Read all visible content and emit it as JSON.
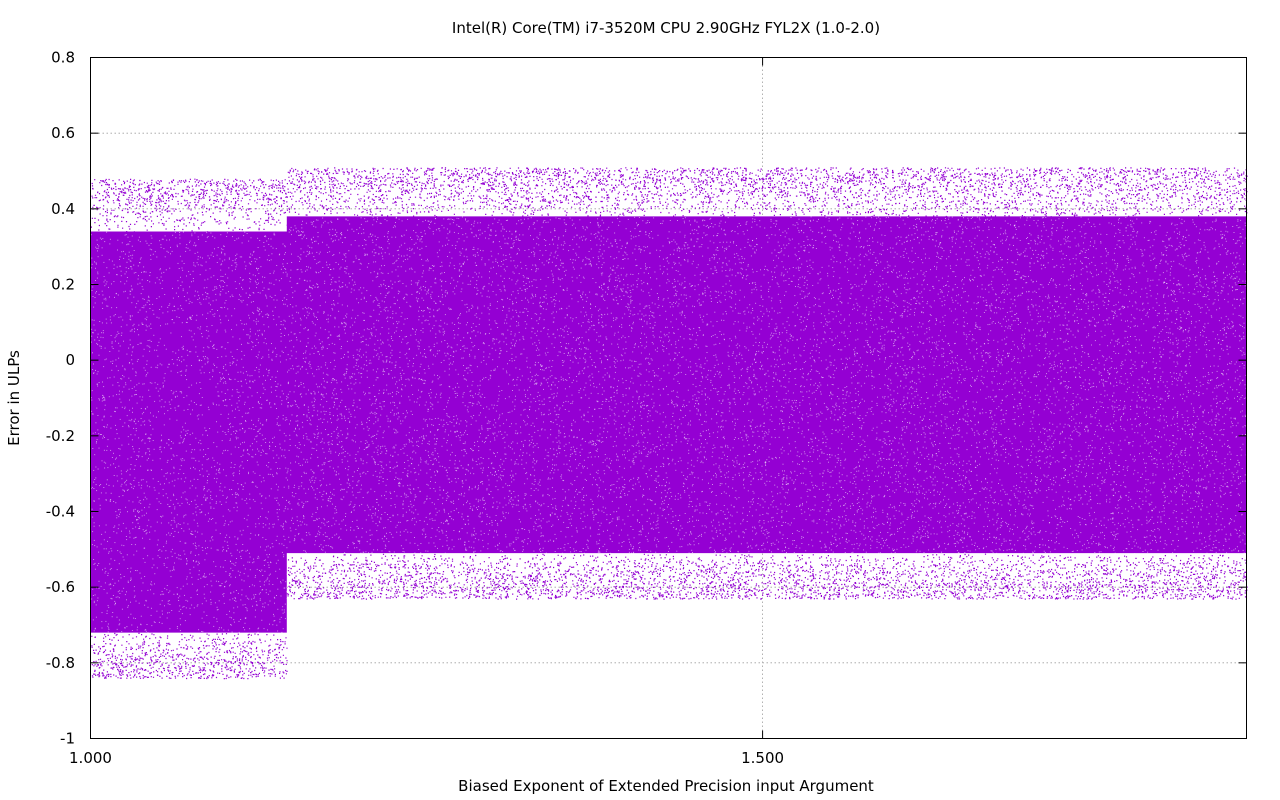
{
  "chart_data": {
    "type": "scatter",
    "title": "Intel(R) Core(TM) i7-3520M CPU  2.90GHz FYL2X (1.0-2.0)",
    "xlabel": "Biased Exponent of Extended Precision input Argument",
    "ylabel": "Error in ULPs",
    "xlim": [
      1.0,
      1.86
    ],
    "ylim": [
      -1.0,
      0.8
    ],
    "x_ticks": [
      {
        "value": 1.0,
        "label": "1.000"
      },
      {
        "value": 1.5,
        "label": "1.500"
      }
    ],
    "y_ticks": [
      {
        "value": 0.8,
        "label": "0.8"
      },
      {
        "value": 0.6,
        "label": "0.6"
      },
      {
        "value": 0.4,
        "label": "0.4"
      },
      {
        "value": 0.2,
        "label": "0.2"
      },
      {
        "value": 0.0,
        "label": "0"
      },
      {
        "value": -0.2,
        "label": "-0.2"
      },
      {
        "value": -0.4,
        "label": "-0.4"
      },
      {
        "value": -0.6,
        "label": "-0.6"
      },
      {
        "value": -0.8,
        "label": "-0.8"
      },
      {
        "value": -1.0,
        "label": "-1"
      }
    ],
    "grid": true,
    "series": [
      {
        "color": "#9400d3",
        "regions": [
          {
            "x": [
              1.0,
              1.146
            ],
            "y_min": -0.84,
            "y_max": 0.48,
            "dense_min": -0.72,
            "dense_max": 0.34
          },
          {
            "x": [
              1.146,
              1.86
            ],
            "y_min": -0.63,
            "y_max": 0.51,
            "dense_min": -0.51,
            "dense_max": 0.38
          }
        ]
      }
    ]
  }
}
